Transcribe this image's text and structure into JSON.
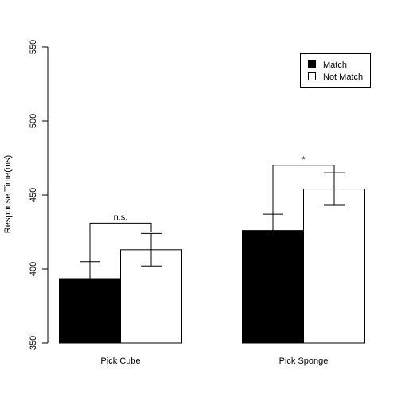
{
  "chart_data": {
    "type": "bar",
    "title": "",
    "xlabel": "",
    "ylabel": "Response Time(ms)",
    "ylim": [
      350,
      550
    ],
    "yticks": [
      350,
      400,
      450,
      500,
      550
    ],
    "grid": false,
    "legend_position": "top-right",
    "categories": [
      "Pick Cube",
      "Pick Sponge"
    ],
    "series": [
      {
        "name": "Match",
        "color": "#000000",
        "values": [
          393,
          426
        ],
        "error": [
          12,
          11
        ]
      },
      {
        "name": "Not Match",
        "color": "#ffffff",
        "values": [
          413,
          454
        ],
        "error": [
          11,
          11
        ]
      }
    ],
    "annotations": [
      {
        "category": 0,
        "text": "n.s.",
        "bracket_base": [
          405,
          425
        ],
        "bracket_top": 431
      },
      {
        "category": 1,
        "text": "*",
        "bracket_base": [
          437,
          465
        ],
        "bracket_top": 470
      }
    ]
  }
}
